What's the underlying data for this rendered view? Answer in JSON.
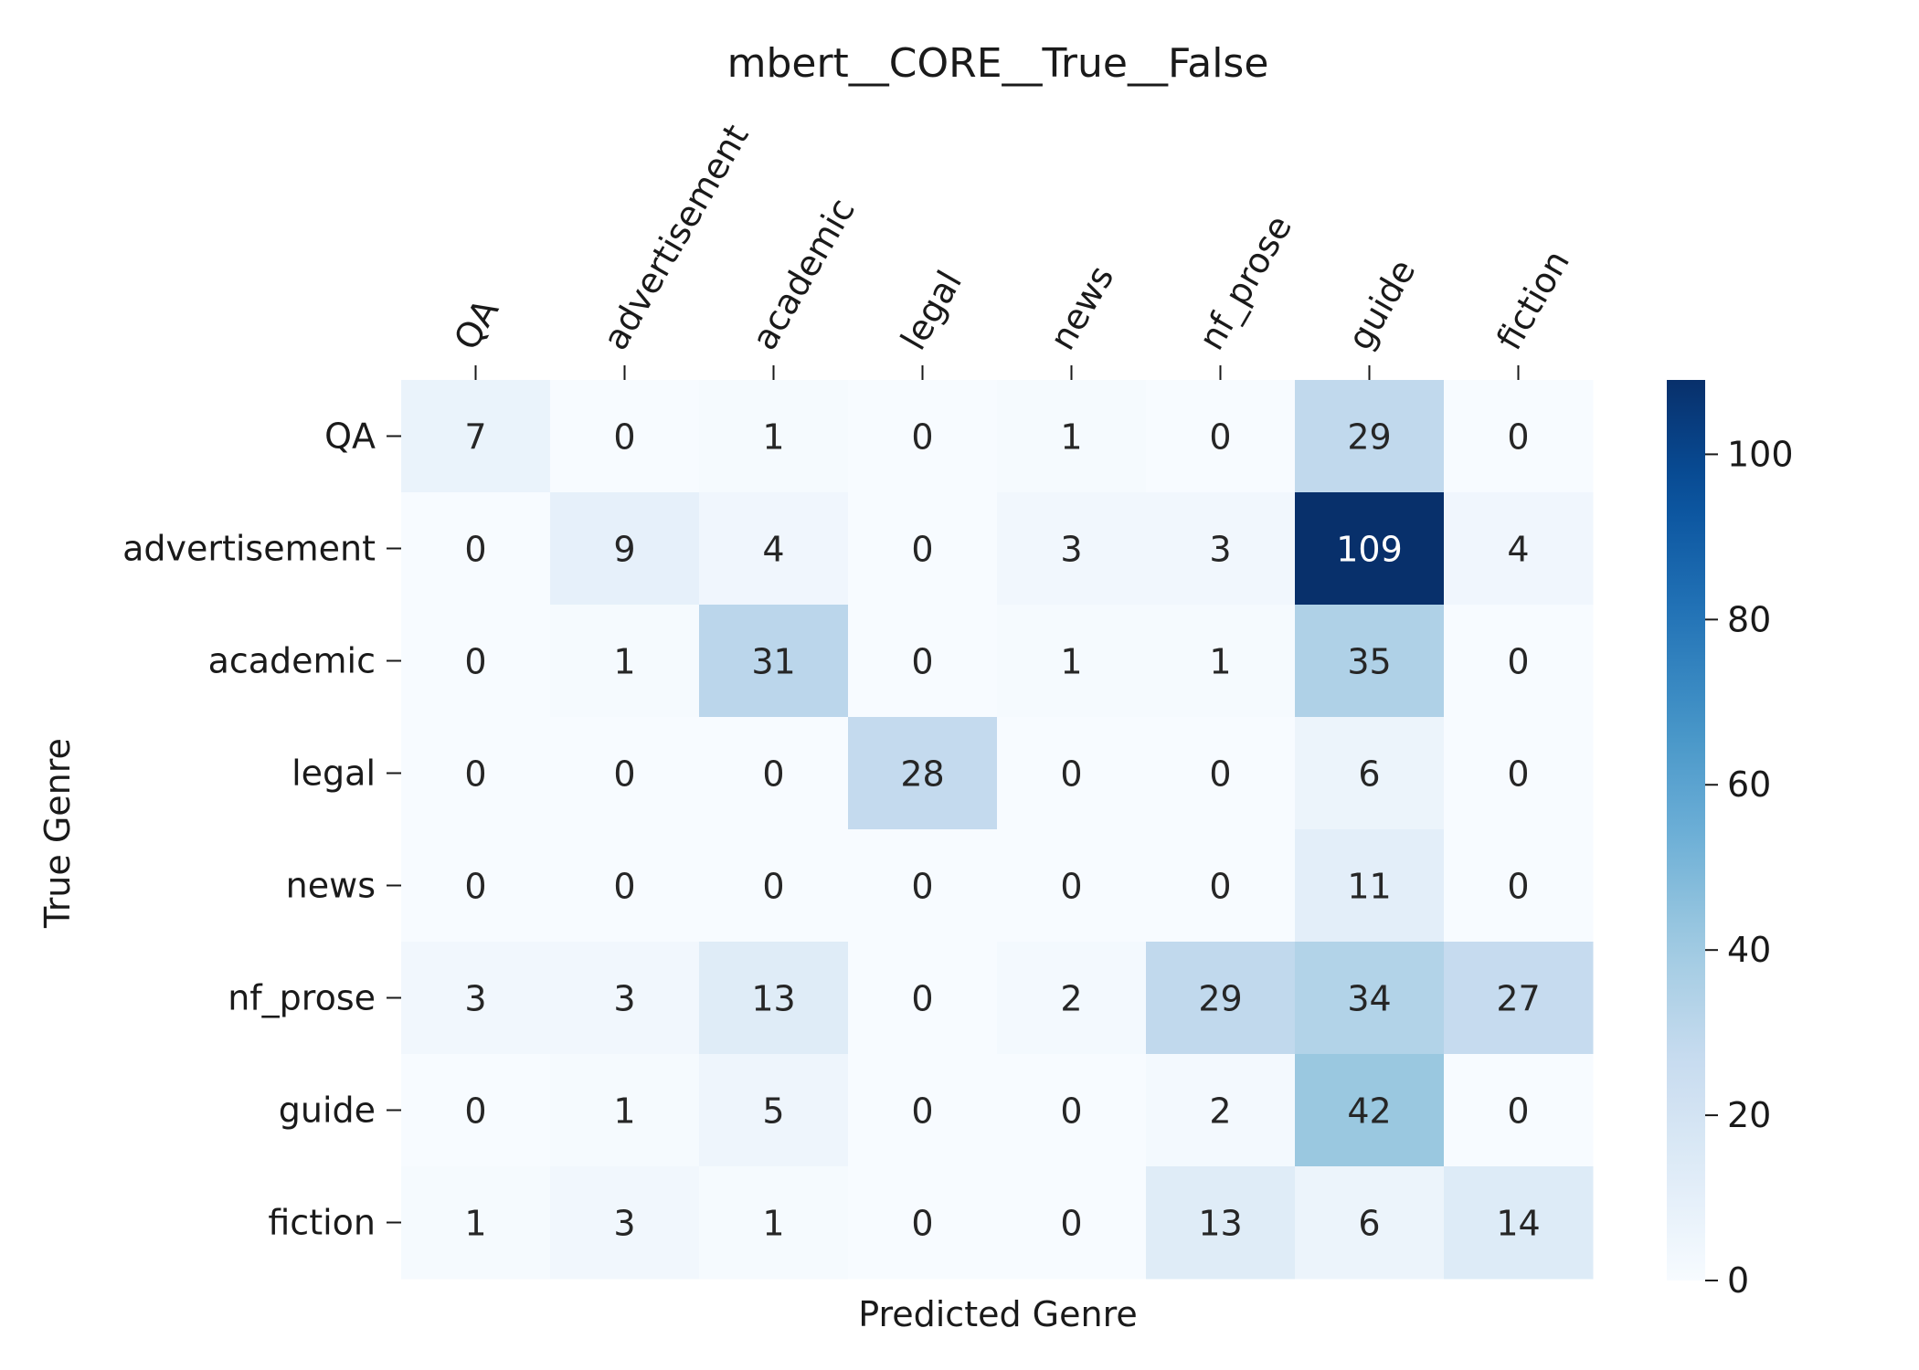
{
  "chart_data": {
    "type": "heatmap",
    "title": "mbert__CORE__True__False",
    "xlabel": "Predicted Genre",
    "ylabel": "True Genre",
    "x_categories": [
      "QA",
      "advertisement",
      "academic",
      "legal",
      "news",
      "nf_prose",
      "guide",
      "fiction"
    ],
    "y_categories": [
      "QA",
      "advertisement",
      "academic",
      "legal",
      "news",
      "nf_prose",
      "guide",
      "fiction"
    ],
    "values": [
      [
        7,
        0,
        1,
        0,
        1,
        0,
        29,
        0
      ],
      [
        0,
        9,
        4,
        0,
        3,
        3,
        109,
        4
      ],
      [
        0,
        1,
        31,
        0,
        1,
        1,
        35,
        0
      ],
      [
        0,
        0,
        0,
        28,
        0,
        0,
        6,
        0
      ],
      [
        0,
        0,
        0,
        0,
        0,
        0,
        11,
        0
      ],
      [
        3,
        3,
        13,
        0,
        2,
        29,
        34,
        27
      ],
      [
        0,
        1,
        5,
        0,
        0,
        2,
        42,
        0
      ],
      [
        1,
        3,
        1,
        0,
        0,
        13,
        6,
        14
      ]
    ],
    "colormap": "Blues",
    "vmin": 0,
    "vmax": 109,
    "colorbar_ticks": [
      0,
      20,
      40,
      60,
      80,
      100
    ],
    "x_tick_position": "top",
    "x_tick_rotation": "60deg",
    "grid": false,
    "annotated": true
  }
}
